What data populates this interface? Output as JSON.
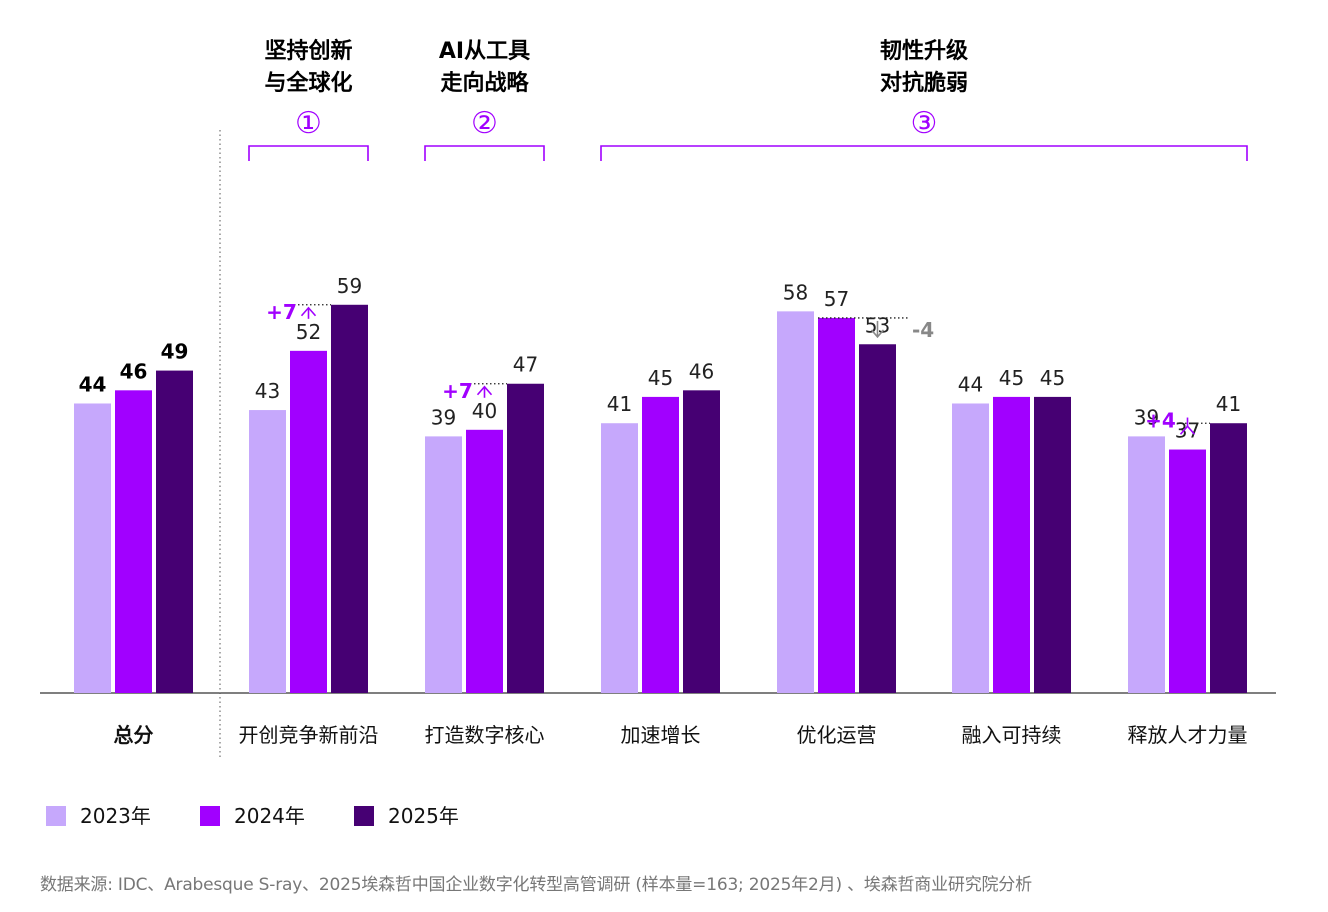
{
  "chart_data": {
    "type": "bar",
    "title": "",
    "xlabel": "",
    "ylabel": "",
    "ylim": [
      0,
      70
    ],
    "grid": false,
    "legend_position": "bottom-left",
    "categories": [
      "总分",
      "开创竞争新前沿",
      "打造数字核心",
      "加速增长",
      "优化运营",
      "融入可持续",
      "释放人才力量"
    ],
    "series": [
      {
        "name": "2023年",
        "values": [
          44,
          43,
          39,
          41,
          58,
          44,
          39
        ]
      },
      {
        "name": "2024年",
        "values": [
          46,
          52,
          40,
          45,
          57,
          45,
          37
        ]
      },
      {
        "name": "2025年",
        "values": [
          49,
          59,
          47,
          46,
          53,
          45,
          41
        ]
      }
    ],
    "colors": [
      "#c6a8fc",
      "#a100ff",
      "#460073"
    ],
    "total_category_bold": true,
    "groups": [
      {
        "number": "①",
        "title_line1": "坚持创新",
        "title_line2": "与全球化",
        "categories": [
          1
        ]
      },
      {
        "number": "②",
        "title_line1": "AI从工具",
        "title_line2": "走向战略",
        "categories": [
          2
        ]
      },
      {
        "number": "③",
        "title_line1": "韧性升级",
        "title_line2": "对抗脆弱",
        "categories": [
          3,
          4,
          5,
          6
        ]
      }
    ],
    "annotations": [
      {
        "category": 1,
        "from_series": 1,
        "to_series": 2,
        "text": "+7",
        "direction": "up",
        "color": "#a100ff"
      },
      {
        "category": 2,
        "from_series": 1,
        "to_series": 2,
        "text": "+7",
        "direction": "up",
        "color": "#a100ff"
      },
      {
        "category": 4,
        "from_series": 1,
        "to_series": 2,
        "text": "-4",
        "direction": "down",
        "color": "#888888"
      },
      {
        "category": 6,
        "from_series": 1,
        "to_series": 2,
        "text": "+4",
        "direction": "up",
        "color": "#a100ff"
      }
    ]
  },
  "source": "数据来源: IDC、Arabesque S-ray、2025埃森哲中国企业数字化转型高管调研 (样本量=163; 2025年2月) 、埃森哲商业研究院分析"
}
